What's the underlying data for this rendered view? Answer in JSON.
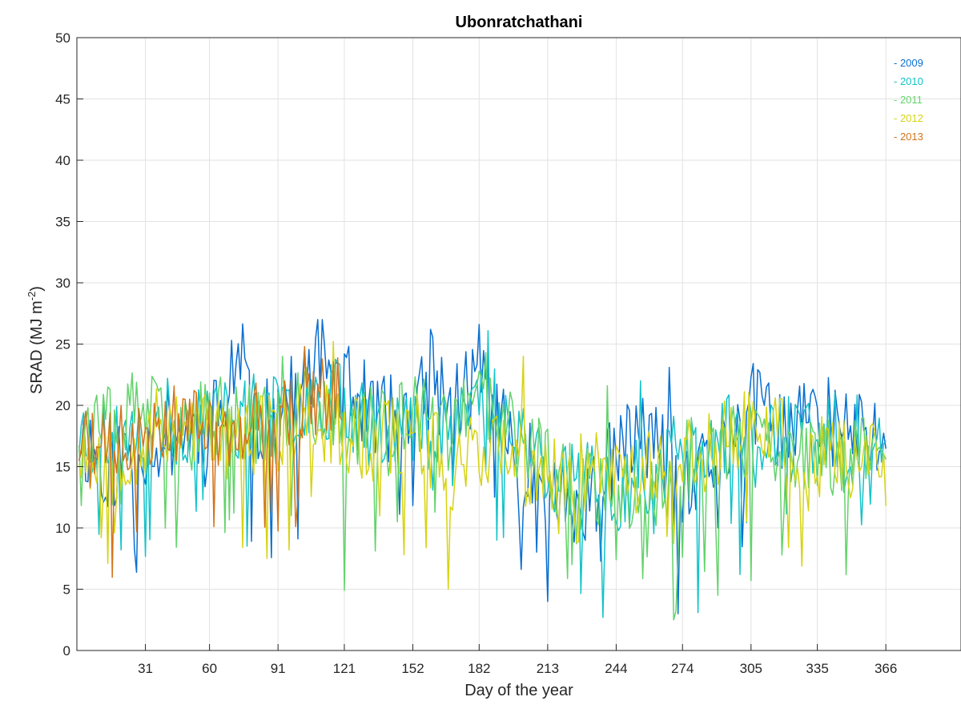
{
  "chart_data": {
    "type": "line",
    "title": "Ubonratchathani",
    "xlabel": "Day of the year",
    "ylabel_main": "SRAD (MJ m",
    "ylabel_sup": "-2",
    "ylabel_close": ")",
    "xlim": [
      0,
      400
    ],
    "ylim": [
      0,
      50
    ],
    "xticks": [
      31,
      60,
      91,
      121,
      152,
      182,
      213,
      244,
      274,
      305,
      335,
      366
    ],
    "yticks": [
      0,
      5,
      10,
      15,
      20,
      25,
      30,
      35,
      40,
      45,
      50
    ],
    "grid": true,
    "legend_position": "top-right",
    "series": [
      {
        "name": "2009",
        "color": "#0a6fd0",
        "x_end": 366,
        "anchors": [
          [
            1,
            17.5
          ],
          [
            15,
            15
          ],
          [
            30,
            17
          ],
          [
            45,
            18
          ],
          [
            60,
            18.5
          ],
          [
            70,
            20
          ],
          [
            75,
            25
          ],
          [
            80,
            17
          ],
          [
            91,
            21
          ],
          [
            100,
            20
          ],
          [
            110,
            25
          ],
          [
            120,
            22
          ],
          [
            130,
            20
          ],
          [
            140,
            19
          ],
          [
            150,
            18
          ],
          [
            160,
            22
          ],
          [
            170,
            20
          ],
          [
            182,
            23
          ],
          [
            195,
            17
          ],
          [
            213,
            13
          ],
          [
            230,
            11
          ],
          [
            244,
            16
          ],
          [
            260,
            18
          ],
          [
            274,
            12
          ],
          [
            290,
            16
          ],
          [
            305,
            20
          ],
          [
            320,
            18
          ],
          [
            335,
            19
          ],
          [
            350,
            18
          ],
          [
            366,
            17
          ]
        ],
        "dips": [
          [
            79,
            8.9
          ],
          [
            170,
            13.5
          ],
          [
            213,
            4
          ],
          [
            230,
            9
          ],
          [
            272,
            3
          ],
          [
            290,
            10
          ]
        ],
        "peaks": [
          [
            70,
            25.3
          ],
          [
            160,
            26.2
          ],
          [
            182,
            26.6
          ],
          [
            268,
            23.1
          ],
          [
            305,
            22.3
          ],
          [
            112,
            25
          ]
        ],
        "noise": 3.8,
        "seed": 11
      },
      {
        "name": "2010",
        "color": "#13c3c9",
        "x_end": 366,
        "anchors": [
          [
            1,
            18
          ],
          [
            15,
            17
          ],
          [
            30,
            19
          ],
          [
            45,
            18.5
          ],
          [
            60,
            19
          ],
          [
            75,
            19
          ],
          [
            91,
            19
          ],
          [
            105,
            21
          ],
          [
            121,
            20
          ],
          [
            135,
            19
          ],
          [
            152,
            18
          ],
          [
            170,
            19
          ],
          [
            182,
            21
          ],
          [
            195,
            19
          ],
          [
            213,
            15
          ],
          [
            230,
            14
          ],
          [
            244,
            13
          ],
          [
            260,
            15
          ],
          [
            274,
            16
          ],
          [
            290,
            17
          ],
          [
            305,
            18
          ],
          [
            320,
            17
          ],
          [
            335,
            18
          ],
          [
            350,
            17
          ],
          [
            366,
            18.5
          ]
        ],
        "dips": [
          [
            20,
            8.2
          ],
          [
            238,
            2.7
          ],
          [
            281,
            3.1
          ],
          [
            190,
            9
          ],
          [
            300,
            6.2
          ]
        ],
        "peaks": [
          [
            186,
            26.1
          ],
          [
            118,
            23.5
          ],
          [
            255,
            22
          ]
        ],
        "noise": 3.6,
        "seed": 23
      },
      {
        "name": "2011",
        "color": "#63d36b",
        "x_end": 366,
        "anchors": [
          [
            1,
            18.5
          ],
          [
            15,
            18
          ],
          [
            30,
            20
          ],
          [
            45,
            17
          ],
          [
            60,
            19
          ],
          [
            75,
            19
          ],
          [
            91,
            18
          ],
          [
            105,
            20
          ],
          [
            121,
            19
          ],
          [
            135,
            18
          ],
          [
            152,
            19
          ],
          [
            170,
            18
          ],
          [
            182,
            20
          ],
          [
            195,
            18
          ],
          [
            213,
            15
          ],
          [
            230,
            13
          ],
          [
            244,
            14
          ],
          [
            260,
            12
          ],
          [
            274,
            16
          ],
          [
            290,
            16
          ],
          [
            305,
            17
          ],
          [
            320,
            15
          ],
          [
            335,
            16
          ],
          [
            350,
            16
          ],
          [
            366,
            17
          ]
        ],
        "dips": [
          [
            121,
            4.9
          ],
          [
            270,
            2.5
          ],
          [
            145,
            10.5
          ],
          [
            224,
            7
          ],
          [
            290,
            4.5
          ],
          [
            319,
            7.8
          ]
        ],
        "peaks": [
          [
            185,
            24.3
          ],
          [
            93,
            24
          ],
          [
            240,
            21.6
          ]
        ],
        "noise": 3.5,
        "seed": 37
      },
      {
        "name": "2012",
        "color": "#d6d313",
        "x_end": 366,
        "anchors": [
          [
            1,
            17
          ],
          [
            15,
            16
          ],
          [
            30,
            17
          ],
          [
            45,
            19
          ],
          [
            60,
            18
          ],
          [
            75,
            17
          ],
          [
            91,
            18
          ],
          [
            105,
            19
          ],
          [
            121,
            18
          ],
          [
            135,
            17
          ],
          [
            152,
            18
          ],
          [
            170,
            15
          ],
          [
            182,
            17
          ],
          [
            195,
            16
          ],
          [
            213,
            14
          ],
          [
            230,
            15
          ],
          [
            244,
            15
          ],
          [
            260,
            16
          ],
          [
            274,
            15
          ],
          [
            290,
            17
          ],
          [
            305,
            19
          ],
          [
            320,
            17
          ],
          [
            335,
            16
          ],
          [
            350,
            16
          ],
          [
            366,
            15
          ]
        ],
        "dips": [
          [
            14,
            7.1
          ],
          [
            168,
            5
          ],
          [
            75,
            8.4
          ],
          [
            96,
            8.2
          ],
          [
            11,
            9.2
          ],
          [
            322,
            8.4
          ]
        ],
        "peaks": [
          [
            116,
            25.2
          ],
          [
            202,
            24
          ],
          [
            360,
            18.5
          ]
        ],
        "noise": 3.6,
        "seed": 53
      },
      {
        "name": "2013",
        "color": "#d2741a",
        "x_end": 120,
        "anchors": [
          [
            1,
            17
          ],
          [
            10,
            16
          ],
          [
            20,
            17
          ],
          [
            30,
            18
          ],
          [
            40,
            19
          ],
          [
            50,
            19
          ],
          [
            60,
            18
          ],
          [
            70,
            17
          ],
          [
            80,
            19
          ],
          [
            91,
            19
          ],
          [
            100,
            20
          ],
          [
            110,
            21
          ],
          [
            120,
            21
          ]
        ],
        "dips": [
          [
            27,
            9.7
          ],
          [
            62,
            10.1
          ],
          [
            99,
            10.1
          ]
        ],
        "peaks": [
          [
            103,
            24.8
          ]
        ],
        "noise": 3.2,
        "seed": 71
      }
    ]
  }
}
